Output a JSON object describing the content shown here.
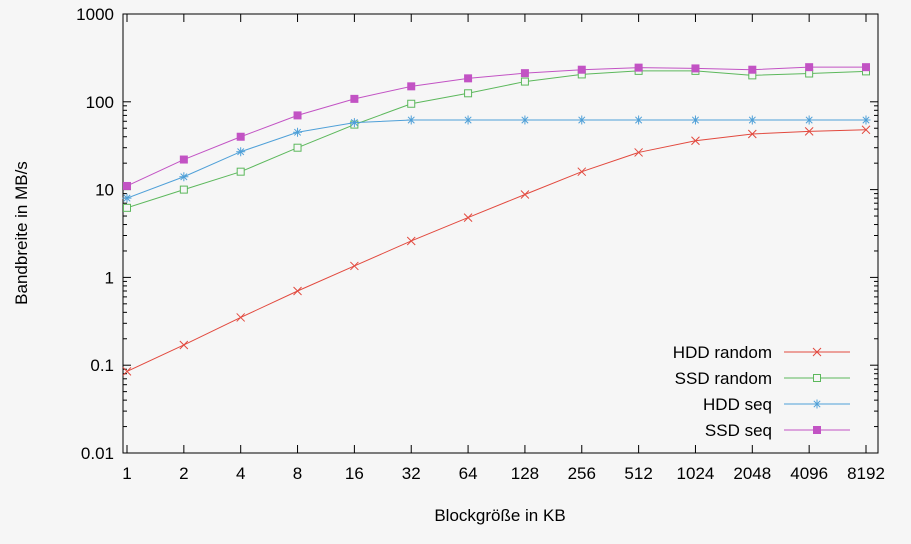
{
  "chart_data": {
    "type": "line",
    "title": "",
    "xlabel": "Blockgröße in KB",
    "ylabel": "Bandbreite in MB/s",
    "x_scale": "log2",
    "y_scale": "log10",
    "ylim": [
      0.01,
      1000
    ],
    "y_ticks": [
      "0.01",
      "0.1",
      "1",
      "10",
      "100",
      "1000"
    ],
    "categories": [
      1,
      2,
      4,
      8,
      16,
      32,
      64,
      128,
      256,
      512,
      1024,
      2048,
      4096,
      8192
    ],
    "series": [
      {
        "name": "HDD random",
        "color": "#e2493e",
        "marker": "x",
        "values": [
          0.085,
          0.17,
          0.35,
          0.7,
          1.35,
          2.6,
          4.8,
          8.8,
          16,
          26.5,
          36,
          43,
          46,
          48
        ]
      },
      {
        "name": "SSD random",
        "color": "#5cb85c",
        "marker": "open-square",
        "values": [
          6.2,
          10,
          16,
          30,
          55,
          95,
          125,
          170,
          205,
          225,
          225,
          200,
          210,
          222
        ]
      },
      {
        "name": "HDD seq",
        "color": "#4fa0d8",
        "marker": "asterisk",
        "values": [
          8,
          14,
          27,
          45,
          58,
          62,
          62,
          62,
          62,
          62,
          62,
          62,
          62,
          62
        ]
      },
      {
        "name": "SSD seq",
        "color": "#c253c4",
        "marker": "filled-square",
        "values": [
          11,
          22,
          40,
          70,
          108,
          150,
          185,
          212,
          232,
          245,
          240,
          232,
          248,
          248
        ]
      }
    ],
    "legend_position": "bottom-right-inside",
    "grid": false,
    "background": "#f6f6f6",
    "axis_color": "#000000"
  }
}
